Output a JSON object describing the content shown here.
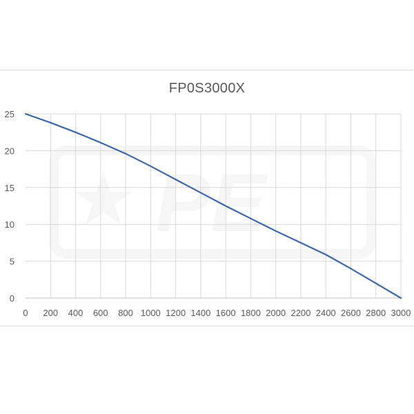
{
  "chart_data": {
    "type": "line",
    "title": "FP0S3000X",
    "xlabel": "",
    "ylabel": "",
    "xlim": [
      0,
      3000
    ],
    "ylim": [
      0,
      25
    ],
    "x_ticks": [
      0,
      200,
      400,
      600,
      800,
      1000,
      1200,
      1400,
      1600,
      1800,
      2000,
      2200,
      2400,
      2600,
      2800,
      3000
    ],
    "y_ticks": [
      0,
      5,
      10,
      15,
      20,
      25
    ],
    "x_tick_labels": [
      "0",
      "200",
      "400",
      "600",
      "800",
      "1000",
      "1200",
      "1400",
      "1600",
      "1800",
      "2000",
      "2200",
      "2400",
      "2600",
      "2800",
      "3000"
    ],
    "y_tick_labels": [
      "0",
      "5",
      "10",
      "15",
      "20",
      "25"
    ],
    "grid": "vertical and horizontal",
    "legend": "none",
    "series": [
      {
        "color": "#3a67ae",
        "x": [
          0,
          200,
          400,
          600,
          800,
          1000,
          1200,
          1400,
          1600,
          1800,
          2000,
          2200,
          2400,
          2600,
          2800,
          3000
        ],
        "y": [
          25,
          23.8,
          22.5,
          21.1,
          19.6,
          17.9,
          16.1,
          14.3,
          12.5,
          10.8,
          9.1,
          7.5,
          5.9,
          4.0,
          2.0,
          0
        ]
      }
    ]
  }
}
